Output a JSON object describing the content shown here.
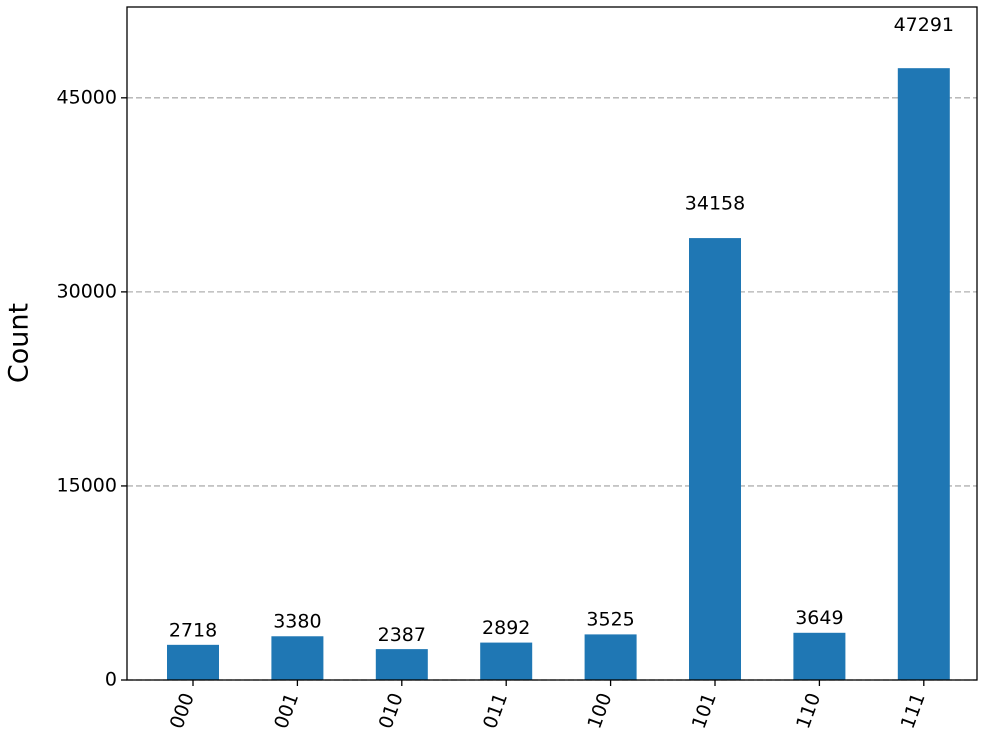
{
  "chart_data": {
    "type": "bar",
    "y_label": "Count",
    "categories": [
      "000",
      "001",
      "010",
      "011",
      "100",
      "101",
      "110",
      "111"
    ],
    "values": [
      2718,
      3380,
      2387,
      2892,
      3525,
      34158,
      3649,
      47291
    ],
    "color": "#1f77b4",
    "ylim": [
      0,
      52020
    ],
    "yticks": [
      0,
      15000,
      30000,
      45000
    ],
    "grid": true
  }
}
